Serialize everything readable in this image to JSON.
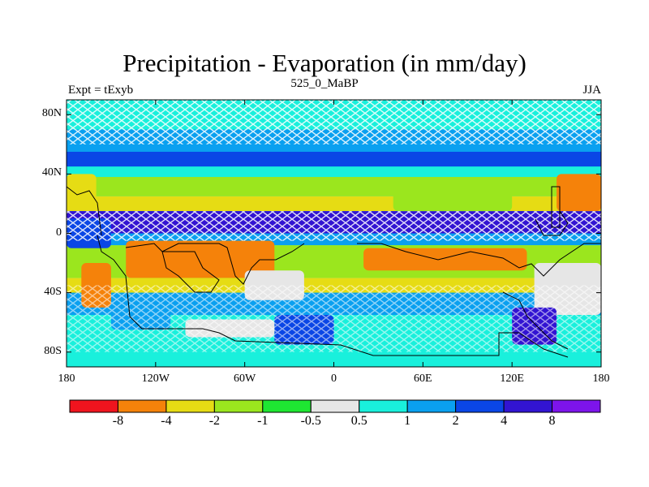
{
  "title": "Precipitation - Evaporation (in mm/day)",
  "subtitle": "525_0_MaBP",
  "left_label": "Expt = tExyb",
  "right_label": "JJA",
  "axes": {
    "y_ticks": [
      {
        "lat": 80,
        "label": "80N"
      },
      {
        "lat": 40,
        "label": "40N"
      },
      {
        "lat": 0,
        "label": "0"
      },
      {
        "lat": -40,
        "label": "40S"
      },
      {
        "lat": -80,
        "label": "80S"
      }
    ],
    "x_ticks": [
      {
        "lon": -180,
        "label": "180"
      },
      {
        "lon": -120,
        "label": "120W"
      },
      {
        "lon": -60,
        "label": "60W"
      },
      {
        "lon": 0,
        "label": "0"
      },
      {
        "lon": 60,
        "label": "60E"
      },
      {
        "lon": 120,
        "label": "120E"
      },
      {
        "lon": 180,
        "label": "180"
      }
    ],
    "lon_range": [
      -180,
      180
    ],
    "lat_range": [
      -90,
      90
    ]
  },
  "colorbar": {
    "colors": [
      "#f0141e",
      "#f5820a",
      "#e6dc14",
      "#9be61e",
      "#1ee632",
      "#e6e6e6",
      "#19f0dc",
      "#0aa0f0",
      "#0a46e6",
      "#3214d2",
      "#7d14eb"
    ],
    "labels": [
      "-8",
      "-4",
      "-2",
      "-1",
      "-0.5",
      "0.5",
      "1",
      "2",
      "4",
      "8"
    ]
  },
  "field_bands": [
    {
      "lat": [
        70,
        90
      ],
      "color": "#19f0dc"
    },
    {
      "lat": [
        55,
        70
      ],
      "color": "#0aa0f0"
    },
    {
      "lat": [
        45,
        55
      ],
      "color": "#0a46e6"
    },
    {
      "lat": [
        38,
        45
      ],
      "color": "#19f0dc"
    },
    {
      "lat": [
        25,
        38
      ],
      "color": "#9be61e"
    },
    {
      "lat": [
        15,
        25
      ],
      "color": "#e6dc14"
    },
    {
      "lat": [
        0,
        15
      ],
      "color": "#3214d2"
    },
    {
      "lat": [
        -8,
        0
      ],
      "color": "#0aa0f0"
    },
    {
      "lat": [
        -30,
        -8
      ],
      "color": "#9be61e"
    },
    {
      "lat": [
        -40,
        -30
      ],
      "color": "#e6dc14"
    },
    {
      "lat": [
        -55,
        -40
      ],
      "color": "#0aa0f0"
    },
    {
      "lat": [
        -75,
        -55
      ],
      "color": "#19f0dc"
    },
    {
      "lat": [
        -90,
        -75
      ],
      "color": "#19f0dc"
    }
  ],
  "field_patches": [
    {
      "lon": [
        -140,
        -40
      ],
      "lat": [
        -30,
        -5
      ],
      "color": "#f5820a"
    },
    {
      "lon": [
        -170,
        -150
      ],
      "lat": [
        -50,
        -20
      ],
      "color": "#f5820a"
    },
    {
      "lon": [
        -60,
        -20
      ],
      "lat": [
        -45,
        -25
      ],
      "color": "#e6e6e6"
    },
    {
      "lon": [
        -40,
        0
      ],
      "lat": [
        -75,
        -55
      ],
      "color": "#0a46e6"
    },
    {
      "lon": [
        20,
        130
      ],
      "lat": [
        -25,
        -10
      ],
      "color": "#f5820a"
    },
    {
      "lon": [
        135,
        180
      ],
      "lat": [
        -55,
        -20
      ],
      "color": "#e6e6e6"
    },
    {
      "lon": [
        120,
        150
      ],
      "lat": [
        -75,
        -50
      ],
      "color": "#3214d2"
    },
    {
      "lon": [
        150,
        180
      ],
      "lat": [
        15,
        40
      ],
      "color": "#f5820a"
    },
    {
      "lon": [
        40,
        120
      ],
      "lat": [
        15,
        35
      ],
      "color": "#9be61e"
    },
    {
      "lon": [
        -180,
        -160
      ],
      "lat": [
        20,
        40
      ],
      "color": "#e6dc14"
    },
    {
      "lon": [
        -180,
        -150
      ],
      "lat": [
        -10,
        10
      ],
      "color": "#0a46e6"
    },
    {
      "lon": [
        -100,
        -40
      ],
      "lat": [
        -70,
        -58
      ],
      "color": "#e6e6e6"
    },
    {
      "lon": [
        -150,
        -110
      ],
      "lat": [
        -65,
        -50
      ],
      "color": "#0aa0f0"
    }
  ]
}
